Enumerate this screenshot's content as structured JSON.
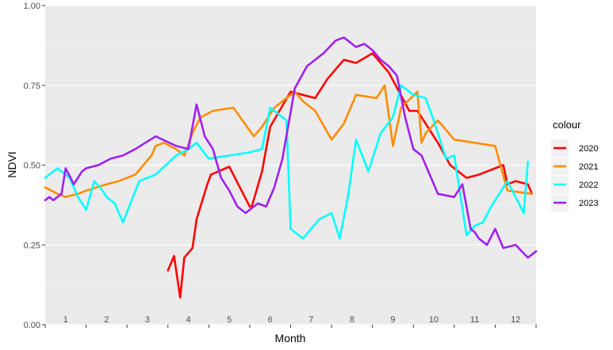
{
  "chart_data": {
    "type": "line",
    "xlabel": "Month",
    "ylabel": "NDVI",
    "ylim": [
      0,
      1
    ],
    "xlim": [
      0,
      12
    ],
    "y_ticks": [
      "0.00",
      "0.25",
      "0.50",
      "0.75",
      "1.00"
    ],
    "month_labels": [
      "1",
      "2",
      "3",
      "4",
      "5",
      "6",
      "7",
      "8",
      "9",
      "10",
      "11",
      "12"
    ],
    "grid": true,
    "legend": {
      "title": "colour",
      "position": "right"
    },
    "series": [
      {
        "name": "2020",
        "color": "#ff0000",
        "x": [
          3.0,
          3.15,
          3.3,
          3.4,
          3.6,
          3.7,
          3.95,
          4.05,
          4.5,
          5.0,
          5.05,
          5.3,
          5.5,
          6.0,
          6.6,
          6.9,
          7.3,
          7.6,
          8.0,
          8.4,
          8.9,
          9.1,
          9.6,
          9.9,
          10.3,
          10.6,
          11.2,
          11.3,
          11.5,
          11.8,
          11.9
        ],
        "y": [
          0.17,
          0.215,
          0.085,
          0.21,
          0.24,
          0.33,
          0.435,
          0.47,
          0.495,
          0.37,
          0.37,
          0.48,
          0.62,
          0.73,
          0.71,
          0.77,
          0.83,
          0.82,
          0.85,
          0.79,
          0.67,
          0.67,
          0.57,
          0.5,
          0.46,
          0.47,
          0.5,
          0.44,
          0.45,
          0.44,
          0.41
        ]
      },
      {
        "name": "2021",
        "color": "#ff8c00",
        "x": [
          0.0,
          0.15,
          0.3,
          0.5,
          0.8,
          1.0,
          1.5,
          1.8,
          2.2,
          2.4,
          2.6,
          2.7,
          2.9,
          3.2,
          3.4,
          3.6,
          3.8,
          4.1,
          4.6,
          5.1,
          5.3,
          5.6,
          6.1,
          6.3,
          6.6,
          7.0,
          7.3,
          7.6,
          8.1,
          8.3,
          8.5,
          8.7,
          9.1,
          9.2,
          9.3,
          9.6,
          10.0,
          10.5,
          11.0,
          11.3,
          11.9
        ],
        "y": [
          0.43,
          0.42,
          0.41,
          0.4,
          0.41,
          0.42,
          0.44,
          0.45,
          0.47,
          0.5,
          0.53,
          0.56,
          0.57,
          0.55,
          0.53,
          0.6,
          0.65,
          0.67,
          0.68,
          0.59,
          0.62,
          0.68,
          0.73,
          0.7,
          0.67,
          0.58,
          0.63,
          0.72,
          0.71,
          0.75,
          0.56,
          0.68,
          0.73,
          0.57,
          0.6,
          0.64,
          0.58,
          0.57,
          0.56,
          0.42,
          0.41
        ]
      },
      {
        "name": "2022",
        "color": "#00ffff",
        "x": [
          0.0,
          0.3,
          0.6,
          0.8,
          1.0,
          1.2,
          1.4,
          1.5,
          1.7,
          1.9,
          2.3,
          2.7,
          3.2,
          3.5,
          3.7,
          4.0,
          4.5,
          5.0,
          5.3,
          5.5,
          5.7,
          5.9,
          6.0,
          6.3,
          6.7,
          7.0,
          7.2,
          7.4,
          7.6,
          7.9,
          8.2,
          8.5,
          8.7,
          9.0,
          9.3,
          9.5,
          9.8,
          10.0,
          10.3,
          10.5,
          10.7,
          10.9,
          11.0,
          11.3,
          11.7,
          11.8
        ],
        "y": [
          0.46,
          0.49,
          0.46,
          0.4,
          0.36,
          0.45,
          0.42,
          0.4,
          0.38,
          0.32,
          0.45,
          0.47,
          0.53,
          0.55,
          0.57,
          0.52,
          0.53,
          0.54,
          0.55,
          0.68,
          0.66,
          0.64,
          0.3,
          0.27,
          0.33,
          0.35,
          0.27,
          0.4,
          0.58,
          0.48,
          0.6,
          0.65,
          0.75,
          0.72,
          0.71,
          0.64,
          0.52,
          0.53,
          0.28,
          0.31,
          0.32,
          0.37,
          0.39,
          0.45,
          0.35,
          0.51
        ]
      },
      {
        "name": "2023",
        "color": "#a020f0",
        "x": [
          0.0,
          0.1,
          0.2,
          0.3,
          0.4,
          0.5,
          0.7,
          0.9,
          1.0,
          1.3,
          1.6,
          1.9,
          2.2,
          2.7,
          3.2,
          3.5,
          3.7,
          3.9,
          4.1,
          4.3,
          4.5,
          4.7,
          4.9,
          5.0,
          5.2,
          5.4,
          5.6,
          5.8,
          6.1,
          6.4,
          6.8,
          7.1,
          7.3,
          7.6,
          7.8,
          8.0,
          8.2,
          8.4,
          8.6,
          8.8,
          9.0,
          9.2,
          9.6,
          10.0,
          10.2,
          10.4,
          10.5,
          10.6,
          10.8,
          11.0,
          11.2,
          11.5,
          11.8,
          12.0
        ],
        "y": [
          0.39,
          0.4,
          0.39,
          0.4,
          0.41,
          0.49,
          0.44,
          0.48,
          0.49,
          0.5,
          0.52,
          0.53,
          0.55,
          0.59,
          0.56,
          0.55,
          0.69,
          0.59,
          0.55,
          0.46,
          0.42,
          0.37,
          0.35,
          0.36,
          0.38,
          0.37,
          0.43,
          0.52,
          0.74,
          0.81,
          0.85,
          0.89,
          0.9,
          0.87,
          0.88,
          0.86,
          0.83,
          0.81,
          0.78,
          0.65,
          0.55,
          0.53,
          0.41,
          0.4,
          0.44,
          0.3,
          0.29,
          0.27,
          0.25,
          0.3,
          0.24,
          0.25,
          0.21,
          0.23
        ]
      }
    ]
  }
}
